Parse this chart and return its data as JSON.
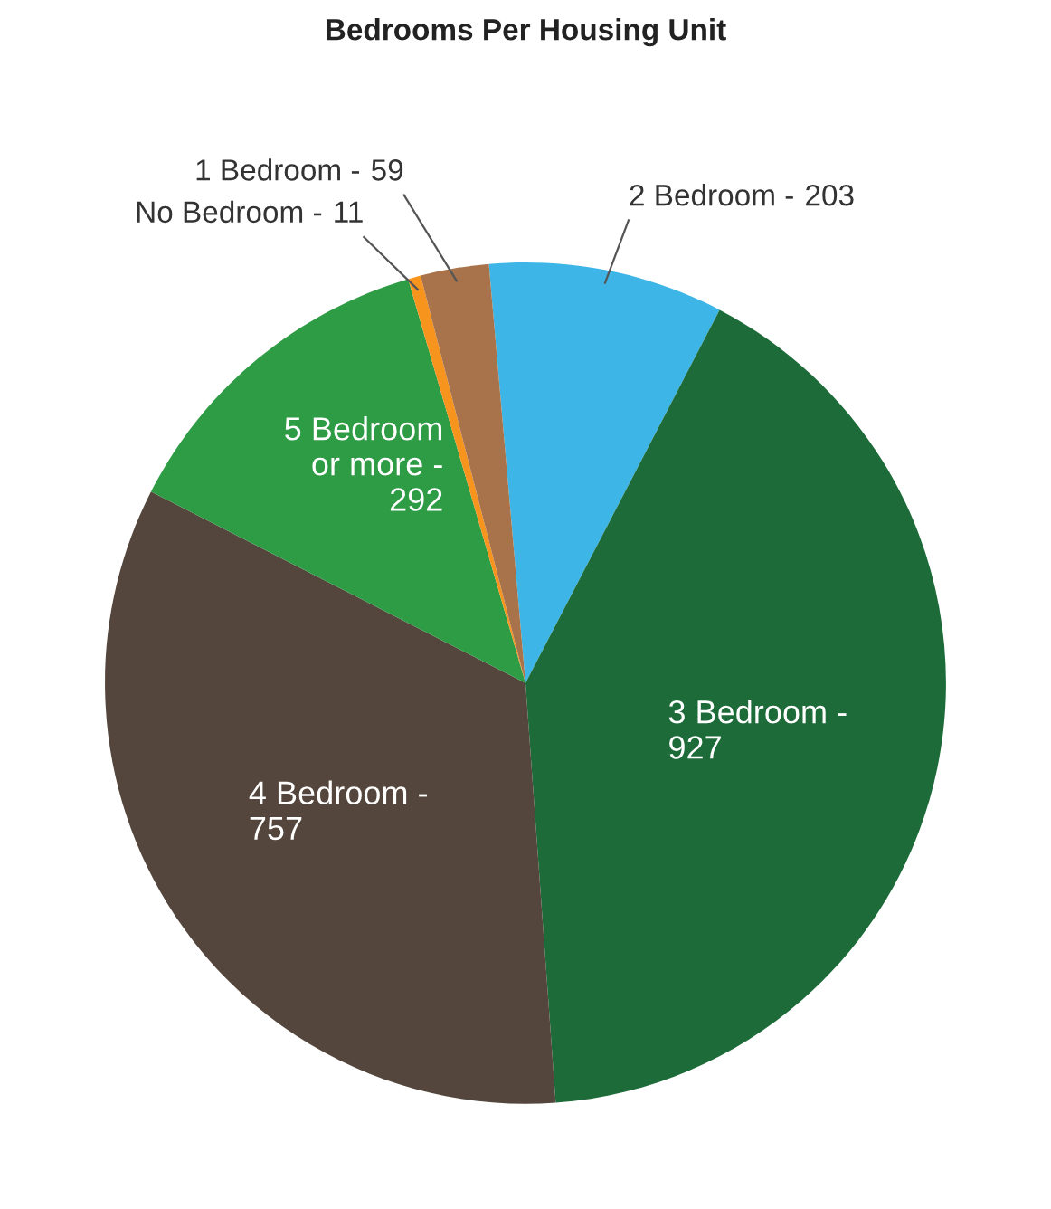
{
  "chart_data": {
    "type": "pie",
    "title": "Bedrooms Per Housing Unit",
    "categories": [
      "2 Bedroom -",
      "3 Bedroom -",
      "4 Bedroom -",
      "5 Bedroom or more -",
      "No Bedroom -",
      "1 Bedroom -"
    ],
    "values": [
      203,
      927,
      757,
      292,
      11,
      59
    ],
    "colors": [
      "#3db5e6",
      "#1e6b3a",
      "#54463c",
      "#2e9b45",
      "#f7941d",
      "#a8734a"
    ],
    "data_labels": true
  }
}
